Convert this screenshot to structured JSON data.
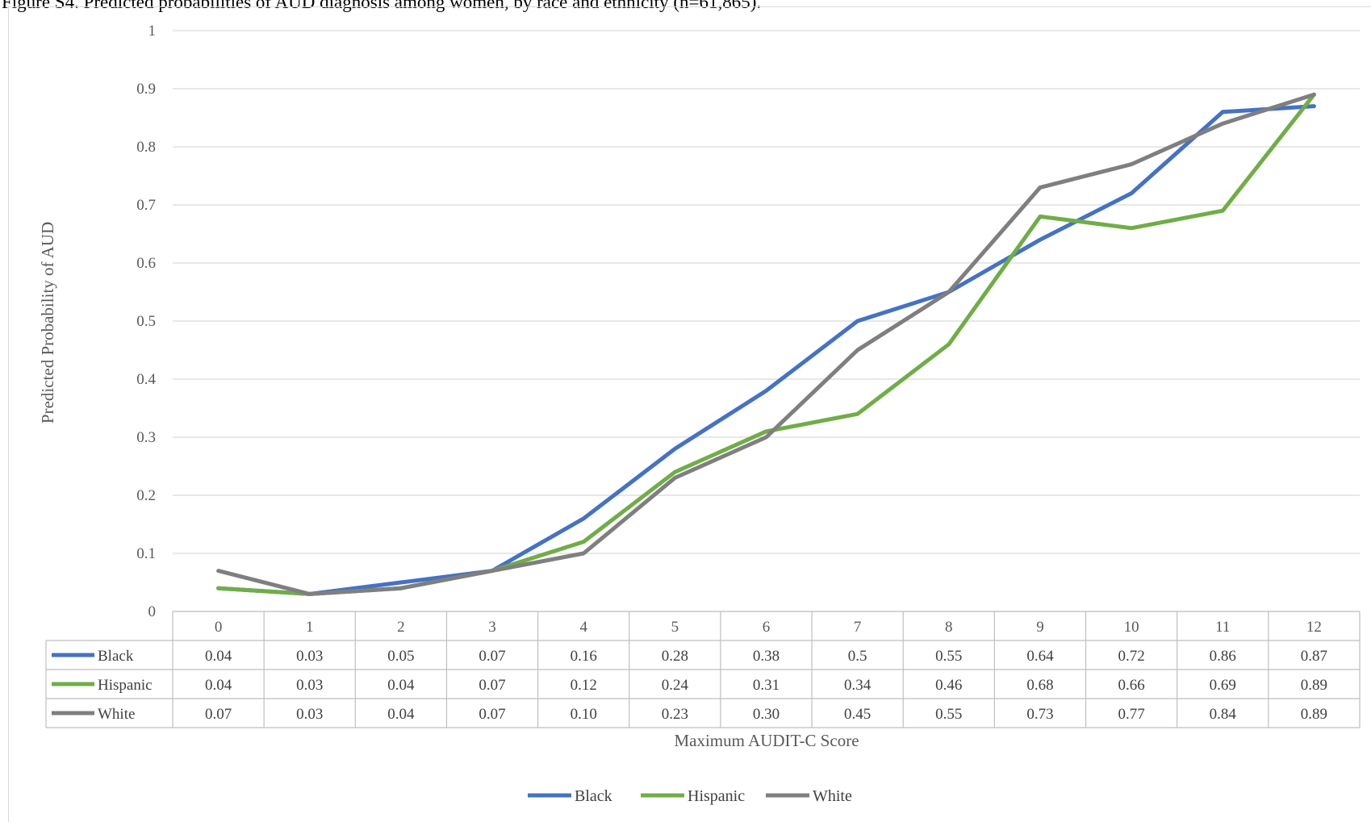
{
  "figure_title": "Figure S4. Predicted probabilities of AUD diagnosis among women, by race and ethnicity (n=61,865).",
  "chart_data": {
    "type": "line",
    "title": "Figure S4. Predicted probabilities of AUD diagnosis among women, by race and ethnicity (n=61,865).",
    "xlabel": "Maximum AUDIT-C Score",
    "ylabel": "Predicted Probability of AUD",
    "categories": [
      "0",
      "1",
      "2",
      "3",
      "4",
      "5",
      "6",
      "7",
      "8",
      "9",
      "10",
      "11",
      "12"
    ],
    "ylim": [
      0,
      1
    ],
    "yticks": [
      "0",
      "0.1",
      "0.2",
      "0.3",
      "0.4",
      "0.5",
      "0.6",
      "0.7",
      "0.8",
      "0.9",
      "1"
    ],
    "grid": true,
    "legend": "bottom",
    "series": [
      {
        "name": "Black",
        "color": "#4472c4",
        "values": [
          0.04,
          0.03,
          0.05,
          0.07,
          0.16,
          0.28,
          0.38,
          0.5,
          0.55,
          0.64,
          0.72,
          0.86,
          0.87
        ],
        "labels": [
          "0.04",
          "0.03",
          "0.05",
          "0.07",
          "0.16",
          "0.28",
          "0.38",
          "0.5",
          "0.55",
          "0.64",
          "0.72",
          "0.86",
          "0.87"
        ]
      },
      {
        "name": "Hispanic",
        "color": "#70ad47",
        "values": [
          0.04,
          0.03,
          0.04,
          0.07,
          0.12,
          0.24,
          0.31,
          0.34,
          0.46,
          0.68,
          0.66,
          0.69,
          0.89
        ],
        "labels": [
          "0.04",
          "0.03",
          "0.04",
          "0.07",
          "0.12",
          "0.24",
          "0.31",
          "0.34",
          "0.46",
          "0.68",
          "0.66",
          "0.69",
          "0.89"
        ]
      },
      {
        "name": "White",
        "color": "#7f7f7f",
        "values": [
          0.07,
          0.03,
          0.04,
          0.07,
          0.1,
          0.23,
          0.3,
          0.45,
          0.55,
          0.73,
          0.77,
          0.84,
          0.89
        ],
        "labels": [
          "0.07",
          "0.03",
          "0.04",
          "0.07",
          "0.10",
          "0.23",
          "0.30",
          "0.45",
          "0.55",
          "0.73",
          "0.77",
          "0.84",
          "0.89"
        ]
      }
    ]
  }
}
